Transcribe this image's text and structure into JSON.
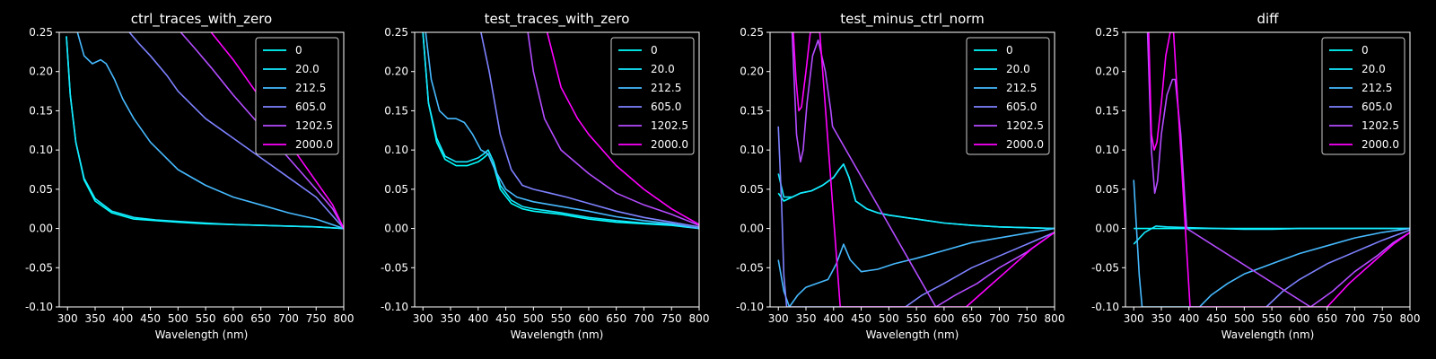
{
  "figure": {
    "background": "#000000",
    "foreground": "#ffffff"
  },
  "legend_labels": [
    "0",
    "20.0",
    "212.5",
    "605.0",
    "1202.5",
    "2000.0"
  ],
  "series_colors": [
    "#00ffff",
    "#16e9ff",
    "#46baff",
    "#7e82ff",
    "#b44cff",
    "#ff00ff"
  ],
  "chart_data": [
    {
      "type": "line",
      "title": "ctrl_traces_with_zero",
      "xlabel": "Wavelength (nm)",
      "ylabel": "",
      "xlim": [
        285,
        800
      ],
      "ylim": [
        -0.1,
        0.25
      ],
      "xticks": [
        300,
        350,
        400,
        450,
        500,
        550,
        600,
        650,
        700,
        750,
        800
      ],
      "yticks": [
        -0.1,
        -0.05,
        0.0,
        0.05,
        0.1,
        0.15,
        0.2,
        0.25
      ],
      "grid": false,
      "legend": "top-right",
      "series": [
        {
          "name": "0",
          "x": [
            298,
            305,
            315,
            330,
            350,
            380,
            420,
            460,
            500,
            550,
            600,
            650,
            700,
            750,
            800
          ],
          "y": [
            0.245,
            0.17,
            0.11,
            0.062,
            0.035,
            0.02,
            0.012,
            0.01,
            0.008,
            0.006,
            0.005,
            0.004,
            0.003,
            0.002,
            0.0
          ]
        },
        {
          "name": "20.0",
          "x": [
            298,
            305,
            315,
            330,
            350,
            380,
            420,
            460,
            500,
            550,
            600,
            650,
            700,
            750,
            800
          ],
          "y": [
            0.245,
            0.17,
            0.11,
            0.064,
            0.038,
            0.022,
            0.014,
            0.011,
            0.009,
            0.007,
            0.005,
            0.004,
            0.003,
            0.002,
            0.0
          ]
        },
        {
          "name": "212.5",
          "x": [
            318,
            330,
            345,
            360,
            370,
            385,
            400,
            420,
            450,
            500,
            550,
            600,
            650,
            700,
            750,
            800
          ],
          "y": [
            0.25,
            0.22,
            0.21,
            0.215,
            0.21,
            0.19,
            0.165,
            0.14,
            0.11,
            0.075,
            0.055,
            0.04,
            0.03,
            0.02,
            0.012,
            0.0
          ]
        },
        {
          "name": "605.0",
          "x": [
            412,
            430,
            450,
            480,
            500,
            550,
            600,
            650,
            700,
            750,
            800
          ],
          "y": [
            0.25,
            0.235,
            0.22,
            0.195,
            0.175,
            0.14,
            0.115,
            0.09,
            0.065,
            0.04,
            0.0
          ]
        },
        {
          "name": "1202.5",
          "x": [
            505,
            530,
            560,
            600,
            650,
            700,
            750,
            780,
            800
          ],
          "y": [
            0.25,
            0.23,
            0.205,
            0.17,
            0.13,
            0.09,
            0.05,
            0.025,
            0.0
          ]
        },
        {
          "name": "2000.0",
          "x": [
            560,
            600,
            650,
            700,
            750,
            780,
            800
          ],
          "y": [
            0.25,
            0.215,
            0.165,
            0.11,
            0.06,
            0.03,
            0.0
          ]
        }
      ]
    },
    {
      "type": "line",
      "title": "test_traces_with_zero",
      "xlabel": "Wavelength (nm)",
      "ylabel": "",
      "xlim": [
        285,
        800
      ],
      "ylim": [
        -0.1,
        0.25
      ],
      "xticks": [
        300,
        350,
        400,
        450,
        500,
        550,
        600,
        650,
        700,
        750,
        800
      ],
      "yticks": [
        -0.1,
        -0.05,
        0.0,
        0.05,
        0.1,
        0.15,
        0.2,
        0.25
      ],
      "grid": false,
      "legend": "top-right",
      "series": [
        {
          "name": "0",
          "x": [
            300,
            310,
            325,
            340,
            360,
            380,
            400,
            410,
            418,
            428,
            440,
            460,
            480,
            500,
            550,
            600,
            650,
            700,
            750,
            800
          ],
          "y": [
            0.25,
            0.16,
            0.11,
            0.088,
            0.08,
            0.08,
            0.085,
            0.09,
            0.095,
            0.08,
            0.05,
            0.032,
            0.025,
            0.022,
            0.018,
            0.012,
            0.008,
            0.006,
            0.004,
            0.0
          ]
        },
        {
          "name": "20.0",
          "x": [
            300,
            310,
            325,
            340,
            360,
            380,
            400,
            410,
            418,
            428,
            440,
            460,
            480,
            500,
            550,
            600,
            650,
            700,
            750,
            800
          ],
          "y": [
            0.25,
            0.16,
            0.115,
            0.092,
            0.085,
            0.085,
            0.09,
            0.095,
            0.1,
            0.085,
            0.055,
            0.036,
            0.028,
            0.025,
            0.02,
            0.014,
            0.01,
            0.007,
            0.005,
            0.0
          ]
        },
        {
          "name": "212.5",
          "x": [
            305,
            315,
            330,
            345,
            360,
            375,
            390,
            405,
            418,
            430,
            450,
            470,
            500,
            550,
            600,
            650,
            700,
            750,
            800
          ],
          "y": [
            0.25,
            0.19,
            0.15,
            0.14,
            0.14,
            0.135,
            0.12,
            0.1,
            0.095,
            0.075,
            0.05,
            0.04,
            0.034,
            0.028,
            0.022,
            0.015,
            0.01,
            0.006,
            0.0
          ]
        },
        {
          "name": "605.0",
          "x": [
            405,
            420,
            440,
            460,
            480,
            500,
            530,
            560,
            600,
            650,
            700,
            750,
            800
          ],
          "y": [
            0.25,
            0.2,
            0.12,
            0.075,
            0.055,
            0.05,
            0.045,
            0.04,
            0.032,
            0.022,
            0.014,
            0.008,
            0.002
          ]
        },
        {
          "name": "1202.5",
          "x": [
            490,
            500,
            520,
            550,
            600,
            650,
            700,
            750,
            800
          ],
          "y": [
            0.25,
            0.2,
            0.14,
            0.1,
            0.07,
            0.045,
            0.03,
            0.018,
            0.004
          ]
        },
        {
          "name": "2000.0",
          "x": [
            525,
            550,
            580,
            600,
            650,
            700,
            750,
            800
          ],
          "y": [
            0.25,
            0.18,
            0.14,
            0.12,
            0.08,
            0.05,
            0.025,
            0.005
          ]
        }
      ]
    },
    {
      "type": "line",
      "title": "test_minus_ctrl_norm",
      "xlabel": "Wavelength (nm)",
      "ylabel": "",
      "xlim": [
        285,
        800
      ],
      "ylim": [
        -0.1,
        0.25
      ],
      "xticks": [
        300,
        350,
        400,
        450,
        500,
        550,
        600,
        650,
        700,
        750,
        800
      ],
      "yticks": [
        -0.1,
        -0.05,
        0.0,
        0.05,
        0.1,
        0.15,
        0.2,
        0.25
      ],
      "grid": false,
      "legend": "top-right",
      "series": [
        {
          "name": "0",
          "x": [
            300,
            310,
            325,
            340,
            360,
            380,
            400,
            410,
            418,
            428,
            440,
            460,
            480,
            500,
            550,
            600,
            650,
            700,
            750,
            800
          ],
          "y": [
            0.045,
            0.035,
            0.04,
            0.045,
            0.048,
            0.055,
            0.065,
            0.075,
            0.082,
            0.065,
            0.035,
            0.025,
            0.02,
            0.017,
            0.012,
            0.007,
            0.004,
            0.002,
            0.001,
            0.0
          ]
        },
        {
          "name": "20.0",
          "x": [
            300,
            310,
            325,
            340,
            360,
            380,
            400,
            410,
            418,
            428,
            440,
            460,
            480,
            500,
            550,
            600,
            650,
            700,
            750,
            800
          ],
          "y": [
            0.07,
            0.04,
            0.04,
            0.045,
            0.048,
            0.055,
            0.065,
            0.075,
            0.082,
            0.065,
            0.035,
            0.025,
            0.02,
            0.017,
            0.012,
            0.007,
            0.004,
            0.002,
            0.001,
            0.0
          ]
        },
        {
          "name": "212.5",
          "x": [
            300,
            310,
            320,
            335,
            350,
            370,
            390,
            405,
            418,
            430,
            450,
            480,
            510,
            550,
            600,
            650,
            700,
            750,
            800
          ],
          "y": [
            -0.04,
            -0.08,
            -0.1,
            -0.085,
            -0.075,
            -0.07,
            -0.065,
            -0.045,
            -0.02,
            -0.04,
            -0.055,
            -0.052,
            -0.045,
            -0.038,
            -0.028,
            -0.018,
            -0.012,
            -0.006,
            0.0
          ]
        },
        {
          "name": "605.0",
          "x": [
            300,
            306,
            310,
            315,
            530,
            560,
            600,
            650,
            700,
            750,
            800
          ],
          "y": [
            0.13,
            0.03,
            -0.06,
            -0.1,
            -0.1,
            -0.085,
            -0.07,
            -0.05,
            -0.035,
            -0.02,
            -0.005
          ]
        },
        {
          "name": "1202.5",
          "x": [
            325,
            333,
            340,
            345,
            352,
            362,
            372,
            385,
            395,
            398,
            585,
            620,
            660,
            700,
            750,
            800
          ],
          "y": [
            0.25,
            0.12,
            0.085,
            0.1,
            0.16,
            0.22,
            0.24,
            0.2,
            0.15,
            0.13,
            -0.1,
            -0.085,
            -0.07,
            -0.05,
            -0.03,
            -0.005
          ]
        },
        {
          "name": "2000.0",
          "x": [
            327,
            332,
            337,
            342,
            350,
            358,
            365,
            370,
            375,
            412,
            640,
            680,
            720,
            760,
            800
          ],
          "y": [
            0.25,
            0.19,
            0.15,
            0.155,
            0.2,
            0.25,
            0.25,
            0.25,
            0.25,
            -0.1,
            -0.1,
            -0.075,
            -0.05,
            -0.025,
            -0.005
          ]
        }
      ]
    },
    {
      "type": "line",
      "title": "diff",
      "xlabel": "Wavelength (nm)",
      "ylabel": "",
      "xlim": [
        285,
        800
      ],
      "ylim": [
        -0.1,
        0.25
      ],
      "xticks": [
        300,
        350,
        400,
        450,
        500,
        550,
        600,
        650,
        700,
        750,
        800
      ],
      "yticks": [
        -0.1,
        -0.05,
        0.0,
        0.05,
        0.1,
        0.15,
        0.2,
        0.25
      ],
      "grid": false,
      "legend": "top-right",
      "series": [
        {
          "name": "0",
          "x": [
            300,
            800
          ],
          "y": [
            0.0,
            0.0
          ]
        },
        {
          "name": "20.0",
          "x": [
            300,
            320,
            340,
            360,
            400,
            450,
            500,
            550,
            600,
            650,
            700,
            750,
            800
          ],
          "y": [
            -0.02,
            -0.005,
            0.003,
            0.002,
            0.001,
            0.0,
            -0.001,
            -0.001,
            0.0,
            0.0,
            0.0,
            0.0,
            0.0
          ]
        },
        {
          "name": "212.5",
          "x": [
            300,
            305,
            310,
            315,
            419,
            440,
            470,
            500,
            550,
            600,
            650,
            700,
            750,
            800
          ],
          "y": [
            0.062,
            0.0,
            -0.06,
            -0.1,
            -0.1,
            -0.085,
            -0.07,
            -0.058,
            -0.045,
            -0.032,
            -0.022,
            -0.012,
            -0.005,
            0.0
          ]
        },
        {
          "name": "605.0",
          "x": [
            540,
            570,
            600,
            650,
            700,
            750,
            800
          ],
          "y": [
            -0.1,
            -0.08,
            -0.065,
            -0.045,
            -0.03,
            -0.015,
            -0.002
          ]
        },
        {
          "name": "1202.5",
          "x": [
            325,
            332,
            338,
            343,
            350,
            360,
            370,
            375,
            385,
            393,
            396,
            620,
            660,
            700,
            740,
            770,
            800
          ],
          "y": [
            0.25,
            0.1,
            0.045,
            0.06,
            0.12,
            0.17,
            0.19,
            0.19,
            0.12,
            0.03,
            0.0,
            -0.1,
            -0.08,
            -0.055,
            -0.035,
            -0.018,
            -0.005
          ]
        },
        {
          "name": "2000.0",
          "x": [
            327,
            332,
            337,
            342,
            350,
            358,
            366,
            372,
            402,
            650,
            690,
            730,
            770,
            800
          ],
          "y": [
            0.25,
            0.12,
            0.1,
            0.11,
            0.16,
            0.22,
            0.25,
            0.25,
            -0.1,
            -0.1,
            -0.07,
            -0.045,
            -0.02,
            -0.005
          ]
        }
      ]
    }
  ]
}
